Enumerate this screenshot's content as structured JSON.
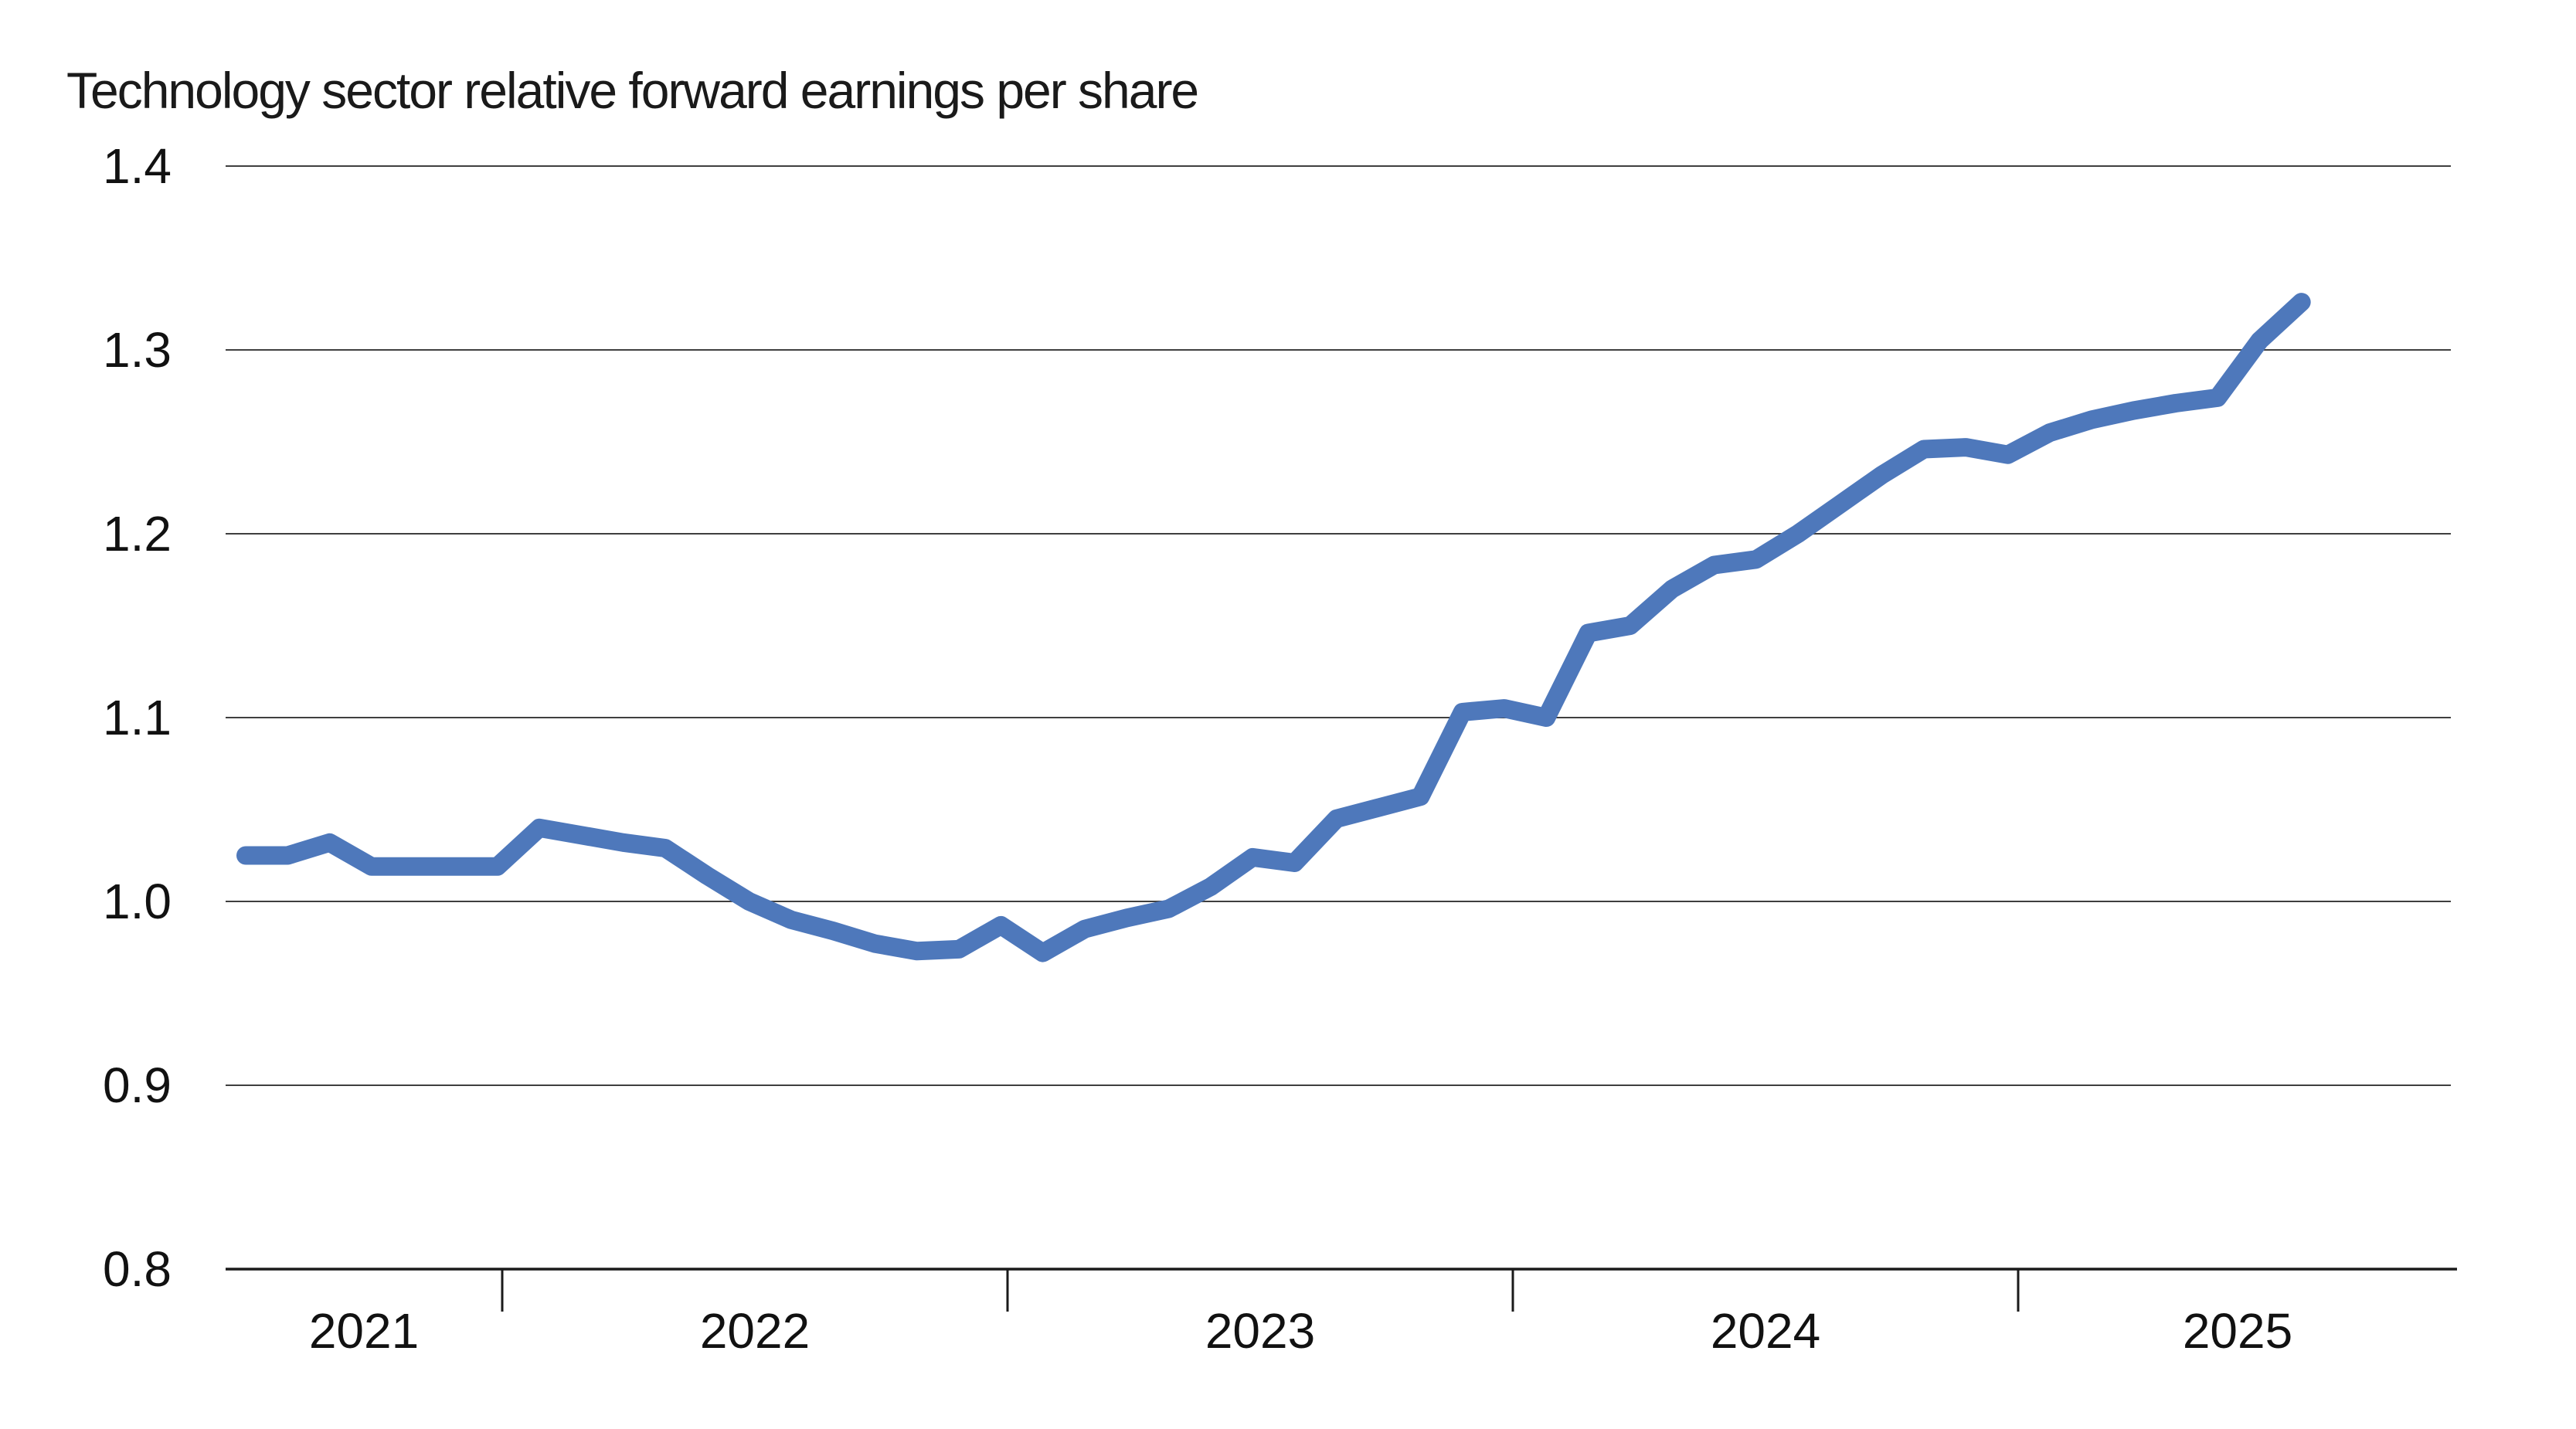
{
  "chart_data": {
    "type": "line",
    "title": "Technology sector relative forward earnings per share",
    "x": [
      "Jun 2021",
      "Jul 2021",
      "Aug 2021",
      "Sep 2021",
      "Oct 2021",
      "Nov 2021",
      "Dec 2021",
      "Jan 2022",
      "Feb 2022",
      "Mar 2022",
      "Apr 2022",
      "May 2022",
      "Jun 2022",
      "Jul 2022",
      "Aug 2022",
      "Sep 2022",
      "Oct 2022",
      "Nov 2022",
      "Dec 2022",
      "Jan 2023",
      "Feb 2023",
      "Mar 2023",
      "Apr 2023",
      "May 2023",
      "Jun 2023",
      "Jul 2023",
      "Aug 2023",
      "Sep 2023",
      "Oct 2023",
      "Nov 2023",
      "Dec 2023",
      "Jan 2024",
      "Feb 2024",
      "Mar 2024",
      "Apr 2024",
      "May 2024",
      "Jun 2024",
      "Jul 2024",
      "Aug 2024",
      "Sep 2024",
      "Oct 2024",
      "Nov 2024",
      "Dec 2024",
      "Jan 2025",
      "Feb 2025",
      "Mar 2025",
      "Apr 2025",
      "May 2025",
      "Jun 2025",
      "Jul 2025"
    ],
    "series": [
      {
        "name": "Technology sector relative forward earnings per share",
        "values": [
          1.025,
          1.025,
          1.032,
          1.019,
          1.019,
          1.019,
          1.019,
          1.04,
          1.036,
          1.032,
          1.029,
          1.014,
          1.0,
          0.99,
          0.984,
          0.977,
          0.973,
          0.974,
          0.987,
          0.972,
          0.985,
          0.991,
          0.996,
          1.008,
          1.024,
          1.021,
          1.045,
          1.051,
          1.057,
          1.103,
          1.105,
          1.1,
          1.146,
          1.15,
          1.17,
          1.183,
          1.186,
          1.2,
          1.216,
          1.232,
          1.246,
          1.247,
          1.243,
          1.255,
          1.262,
          1.267,
          1.271,
          1.274,
          1.305,
          1.326
        ]
      }
    ],
    "xlabel": "",
    "ylabel": "",
    "ylim": [
      0.8,
      1.4
    ],
    "yticks": [
      1.4,
      1.3,
      1.2,
      1.1,
      1.0,
      0.9,
      0.8
    ],
    "ytick_labels": [
      "1.4",
      "1.3",
      "1.2",
      "1.1",
      "1.0",
      "0.9",
      "0.8"
    ],
    "x_year_labels": [
      "2021",
      "2022",
      "2023",
      "2024",
      "2025"
    ],
    "grid": "horizontal",
    "legend": "none"
  },
  "colors": {
    "line": "#4e78bb",
    "gridline": "#3f3f3f",
    "axis": "#1a1a1a",
    "text": "#111111",
    "background": "#ffffff"
  }
}
